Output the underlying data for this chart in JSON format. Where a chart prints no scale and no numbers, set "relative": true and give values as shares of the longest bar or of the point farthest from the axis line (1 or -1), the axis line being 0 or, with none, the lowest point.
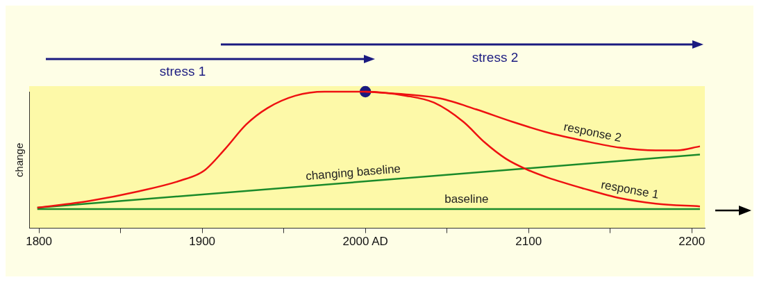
{
  "chart_data": {
    "type": "line",
    "relative": true,
    "ylabel": "change",
    "xlim": [
      1794,
      2208
    ],
    "xticks": [
      1800,
      {
        "value": 1850,
        "label": null
      },
      1900,
      {
        "value": 1950,
        "label": null
      },
      {
        "value": 2000,
        "label": "2000 AD"
      },
      {
        "value": 2050,
        "label": null
      },
      2100,
      {
        "value": 2150,
        "label": null
      },
      2200
    ],
    "grid": false,
    "legend": false,
    "marker": "none",
    "line_style": "solid",
    "annotations": [
      "stress 1",
      "stress 2"
    ],
    "series": [
      {
        "name": "response 1",
        "color": "#ee1111",
        "x": [
          1799,
          1831,
          1861,
          1887,
          1901,
          1914,
          1927,
          1940,
          1957,
          1975,
          2000,
          2025,
          2042,
          2060,
          2073,
          2086,
          2099,
          2112,
          2134,
          2156,
          2178,
          2205
        ],
        "values": [
          0.15,
          0.2,
          0.27,
          0.35,
          0.42,
          0.58,
          0.76,
          0.88,
          0.97,
          1,
          1,
          0.97,
          0.92,
          0.78,
          0.63,
          0.51,
          0.43,
          0.37,
          0.29,
          0.22,
          0.18,
          0.16
        ]
      },
      {
        "name": "response 2",
        "color": "#ee1111",
        "x": [
          2000,
          2025,
          2046,
          2068,
          2090,
          2112,
          2134,
          2156,
          2178,
          2191,
          2205
        ],
        "values": [
          1,
          0.98,
          0.95,
          0.87,
          0.78,
          0.7,
          0.64,
          0.59,
          0.57,
          0.57,
          0.6
        ]
      },
      {
        "name": "changing baseline",
        "color": "#1a8a2a",
        "x": [
          1799,
          2205
        ],
        "values": [
          0.15,
          0.54
        ]
      },
      {
        "name": "baseline",
        "color": "#1a8a2a",
        "x": [
          1799,
          2205
        ],
        "values": [
          0.14,
          0.14
        ]
      },
      {
        "type": "scatter",
        "marker": "circle",
        "color": "#1a1a80",
        "x": [
          2000
        ],
        "values": [
          1
        ]
      }
    ]
  }
}
